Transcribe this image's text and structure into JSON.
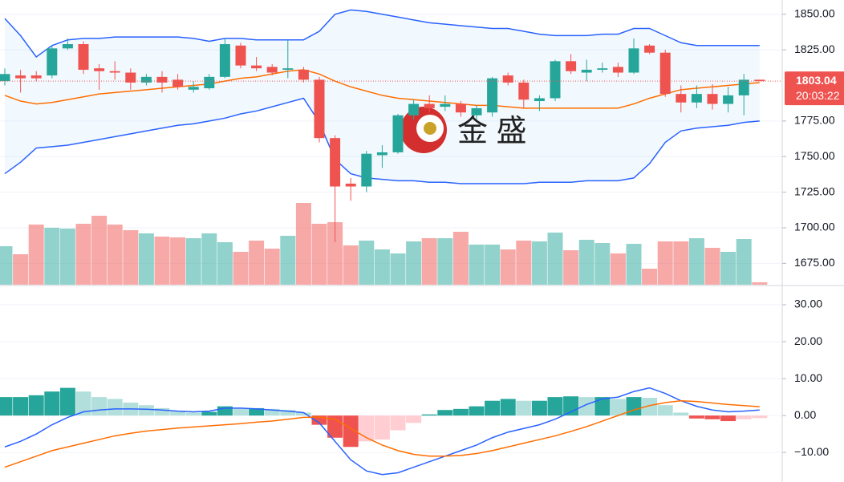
{
  "chart_data": {
    "type": "candlestick",
    "watermark": "金 盛",
    "up_color": "#26a69a",
    "down_color": "#ef5350",
    "open": [
      1803,
      1807,
      1807,
      1807,
      1826,
      1829,
      1812,
      1810,
      1809,
      1802,
      1806,
      1804,
      1797,
      1798,
      1806,
      1828,
      1814,
      1813,
      1811,
      1811,
      1804,
      1763,
      1731,
      1729,
      1751,
      1753,
      1779,
      1787,
      1785,
      1787,
      1779,
      1781,
      1807,
      1802,
      1789,
      1791,
      1817,
      1809,
      1811,
      1813,
      1809,
      1828,
      1823,
      1794,
      1788,
      1794,
      1787,
      1793,
      1804
    ],
    "high": [
      1812,
      1811,
      1810,
      1828,
      1833,
      1831,
      1815,
      1817,
      1812,
      1808,
      1810,
      1808,
      1803,
      1808,
      1833,
      1830,
      1820,
      1815,
      1832,
      1813,
      1806,
      1765,
      1735,
      1754,
      1758,
      1780,
      1790,
      1793,
      1793,
      1789,
      1786,
      1806,
      1809,
      1804,
      1793,
      1818,
      1822,
      1818,
      1816,
      1816,
      1833,
      1829,
      1825,
      1800,
      1800,
      1801,
      1799,
      1808,
      1804
    ],
    "low": [
      1800,
      1795,
      1803,
      1805,
      1825,
      1808,
      1797,
      1804,
      1797,
      1800,
      1795,
      1797,
      1795,
      1797,
      1805,
      1812,
      1810,
      1807,
      1805,
      1802,
      1760,
      1690,
      1719,
      1725,
      1742,
      1752,
      1776,
      1781,
      1782,
      1778,
      1776,
      1778,
      1800,
      1784,
      1782,
      1789,
      1808,
      1803,
      1809,
      1806,
      1808,
      1822,
      1792,
      1781,
      1784,
      1783,
      1781,
      1779,
      1803
    ],
    "close": [
      1808,
      1805,
      1805,
      1826,
      1829,
      1811,
      1810,
      1809,
      1802,
      1806,
      1802,
      1799,
      1799,
      1806,
      1829,
      1814,
      1812,
      1809,
      1812,
      1804,
      1763,
      1729,
      1729,
      1752,
      1753,
      1779,
      1787,
      1784,
      1787,
      1781,
      1784,
      1805,
      1802,
      1790,
      1791,
      1817,
      1810,
      1811,
      1812,
      1809,
      1826,
      1823,
      1794,
      1788,
      1794,
      1787,
      1793,
      1804,
      1803
    ],
    "volume": [
      48,
      38,
      75,
      71,
      70,
      76,
      86,
      75,
      68,
      64,
      60,
      59,
      58,
      64,
      53,
      41,
      55,
      45,
      61,
      102,
      76,
      78,
      49,
      55,
      44,
      39,
      54,
      58,
      58,
      66,
      50,
      50,
      44,
      55,
      54,
      65,
      43,
      56,
      52,
      39,
      51,
      20,
      54,
      54,
      58,
      46,
      41,
      57,
      3
    ],
    "bollinger": {
      "upper_color": "#2962ff",
      "middle_color": "#ff6d00",
      "upper": [
        1847,
        1835,
        1820,
        1828,
        1832,
        1833,
        1833,
        1834,
        1834,
        1834,
        1834,
        1834,
        1833,
        1831,
        1833,
        1833,
        1832,
        1832,
        1832,
        1832,
        1838,
        1850,
        1853,
        1852,
        1850,
        1848,
        1846,
        1844,
        1843,
        1842,
        1841,
        1840,
        1840,
        1838,
        1836,
        1835,
        1835,
        1835,
        1836,
        1836,
        1840,
        1840,
        1835,
        1830,
        1828,
        1828,
        1828,
        1828,
        1828
      ],
      "middle": [
        1793,
        1789,
        1787,
        1788,
        1790,
        1792,
        1794,
        1795,
        1796,
        1797,
        1798,
        1799,
        1800,
        1801,
        1803,
        1805,
        1806,
        1808,
        1810,
        1811,
        1808,
        1803,
        1799,
        1796,
        1793,
        1791,
        1790,
        1789,
        1788,
        1787,
        1786,
        1786,
        1785,
        1784,
        1784,
        1784,
        1784,
        1784,
        1784,
        1784,
        1787,
        1791,
        1794,
        1797,
        1798,
        1799,
        1800,
        1801,
        1802
      ],
      "lower": [
        1738,
        1746,
        1756,
        1757,
        1758,
        1760,
        1762,
        1764,
        1766,
        1768,
        1770,
        1772,
        1773,
        1775,
        1777,
        1780,
        1782,
        1785,
        1788,
        1791,
        1774,
        1748,
        1738,
        1735,
        1734,
        1733,
        1733,
        1732,
        1732,
        1731,
        1731,
        1731,
        1731,
        1731,
        1732,
        1732,
        1732,
        1733,
        1733,
        1733,
        1735,
        1745,
        1760,
        1768,
        1770,
        1771,
        1772,
        1774,
        1775
      ]
    },
    "ylim": [
      1660,
      1860
    ],
    "yticks": [
      {
        "value": 1850,
        "label": "1850.00"
      },
      {
        "value": 1825,
        "label": "1825.00"
      },
      {
        "value": 1775,
        "label": "1775.00"
      },
      {
        "value": 1750,
        "label": "1750.00"
      },
      {
        "value": 1725,
        "label": "1725.00"
      },
      {
        "value": 1700,
        "label": "1700.00"
      },
      {
        "value": 1675,
        "label": "1675.00"
      }
    ],
    "last_price": {
      "value": 1803.04,
      "label": "1803.04"
    },
    "countdown": "20:03:22",
    "macd": {
      "histogram": [
        5,
        5,
        5.5,
        6.5,
        7.5,
        6.5,
        5,
        4.5,
        3.5,
        2.8,
        2,
        1.3,
        0.8,
        1,
        2.5,
        2,
        2,
        1.8,
        1.5,
        0.8,
        -2.5,
        -6,
        -8.5,
        -7,
        -6.5,
        -4,
        -2,
        0.3,
        1.5,
        1.8,
        2.5,
        4,
        4.5,
        4,
        4,
        5,
        5.2,
        5,
        5,
        4.5,
        5,
        4.8,
        2.8,
        0.8,
        -0.8,
        -1,
        -1.5,
        -1,
        -0.7
      ],
      "histogram_colors": {
        "up_rising": "#26a69a",
        "up_falling": "#b2dfdb",
        "down_falling": "#ef5350",
        "down_rising": "#ffcdd2"
      },
      "macd_line": [
        -8.5,
        -7,
        -5,
        -2.5,
        -0.5,
        1,
        1.5,
        1.8,
        1.8,
        1.7,
        1.5,
        1.2,
        1,
        1.2,
        2,
        2,
        1.8,
        1.5,
        1.2,
        0.8,
        -2,
        -7,
        -12,
        -15,
        -16,
        -15.5,
        -14,
        -12.5,
        -11,
        -9.5,
        -8,
        -6,
        -4.5,
        -3.5,
        -2.5,
        -1,
        1,
        3,
        4.5,
        5,
        6.5,
        7.5,
        6,
        4,
        2.5,
        1.5,
        1,
        1.2,
        1.5
      ],
      "signal_line": [
        -14,
        -12.5,
        -11,
        -9.5,
        -8.5,
        -7.5,
        -6.5,
        -5.5,
        -4.8,
        -4.2,
        -3.8,
        -3.4,
        -3.1,
        -2.8,
        -2.5,
        -2.2,
        -1.8,
        -1.5,
        -1,
        -0.5,
        -0.4,
        -1,
        -3.5,
        -6,
        -8,
        -9.5,
        -10.5,
        -11,
        -11,
        -10.8,
        -10.3,
        -9.5,
        -8.5,
        -7.5,
        -6.5,
        -5.5,
        -4.3,
        -3,
        -1.5,
        0,
        1.5,
        2.7,
        3.5,
        4,
        3.8,
        3.4,
        3,
        2.7,
        2.4
      ],
      "macd_color": "#2962ff",
      "signal_color": "#ff6d00",
      "ylim": [
        -18,
        35
      ],
      "yticks": [
        {
          "value": 30,
          "label": "30.00"
        },
        {
          "value": 20,
          "label": "20.00"
        },
        {
          "value": 10,
          "label": "10.00"
        },
        {
          "value": 0,
          "label": "0.00"
        },
        {
          "value": -10,
          "label": "−10.00"
        }
      ]
    }
  }
}
